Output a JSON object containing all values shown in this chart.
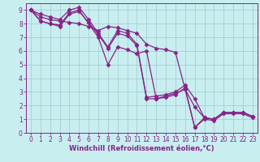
{
  "bg_color": "#c8eef0",
  "grid_color": "#a0c8d0",
  "line_color": "#882288",
  "marker": "D",
  "markersize": 2.5,
  "linewidth": 0.9,
  "xlabel": "Windchill (Refroidissement éolien,°C)",
  "xlabel_fontsize": 6.0,
  "xlim": [
    -0.5,
    23.5
  ],
  "ylim": [
    0,
    9.5
  ],
  "xticks": [
    0,
    1,
    2,
    3,
    4,
    5,
    6,
    7,
    8,
    9,
    10,
    11,
    12,
    13,
    14,
    15,
    16,
    17,
    18,
    19,
    20,
    21,
    22,
    23
  ],
  "yticks": [
    0,
    1,
    2,
    3,
    4,
    5,
    6,
    7,
    8,
    9
  ],
  "tick_fontsize": 5.5,
  "series": [
    {
      "x": [
        0,
        1,
        2,
        3,
        4,
        5,
        6,
        7,
        8,
        9,
        10,
        11,
        12,
        13,
        14,
        15,
        16,
        17,
        18,
        19,
        20,
        21,
        22,
        23
      ],
      "y": [
        9,
        8.5,
        8.3,
        8.2,
        8.1,
        8.0,
        7.8,
        7.5,
        7.8,
        7.7,
        7.5,
        7.3,
        6.5,
        6.2,
        6.1,
        5.9,
        3.2,
        1.9,
        1.1,
        1.0,
        1.5,
        1.5,
        1.5,
        1.2
      ]
    },
    {
      "x": [
        0,
        1,
        2,
        3,
        4,
        5,
        6,
        7,
        8,
        9,
        10,
        11,
        12,
        13,
        14,
        15,
        16,
        17,
        18,
        19,
        20,
        21,
        22,
        23
      ],
      "y": [
        9,
        8.7,
        8.5,
        8.3,
        9.0,
        9.2,
        8.3,
        7.3,
        6.3,
        7.5,
        7.3,
        6.5,
        2.6,
        2.7,
        2.8,
        3.0,
        3.5,
        2.5,
        1.1,
        1.0,
        1.5,
        1.5,
        1.5,
        1.2
      ]
    },
    {
      "x": [
        0,
        1,
        2,
        3,
        4,
        5,
        7,
        8,
        9,
        10,
        11,
        12,
        13,
        14,
        15,
        16,
        17,
        18,
        19,
        20,
        21,
        22,
        23
      ],
      "y": [
        9,
        8.2,
        8.0,
        7.9,
        8.8,
        9.0,
        7.0,
        5.0,
        6.3,
        6.1,
        5.8,
        6.0,
        2.5,
        2.6,
        2.8,
        3.3,
        0.4,
        1.1,
        1.0,
        1.5,
        1.5,
        1.5,
        1.2
      ]
    },
    {
      "x": [
        0,
        1,
        2,
        3,
        4,
        5,
        6,
        7,
        8,
        9,
        10,
        11,
        12,
        13,
        14,
        15,
        16,
        17,
        18,
        19,
        20,
        21,
        22,
        23
      ],
      "y": [
        9,
        8.2,
        8.0,
        7.8,
        8.7,
        8.9,
        8.1,
        7.2,
        6.2,
        7.3,
        7.1,
        6.4,
        2.5,
        2.5,
        2.7,
        2.9,
        3.2,
        0.4,
        1.0,
        0.9,
        1.4,
        1.4,
        1.4,
        1.1
      ]
    }
  ]
}
